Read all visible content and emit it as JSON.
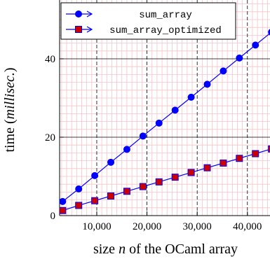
{
  "chart_data": {
    "type": "line",
    "xlabel_prefix": "size ",
    "xlabel_var": "n",
    "xlabel_suffix": " of the OCaml array",
    "ylabel_prefix": "time (",
    "ylabel_var": "millisec.",
    "ylabel_suffix": ")",
    "xlim": [
      2600,
      44500
    ],
    "ylim": [
      0,
      55
    ],
    "x_ticks": [
      {
        "value": 10000,
        "label": "10,000"
      },
      {
        "value": 20000,
        "label": "20,000"
      },
      {
        "value": 30000,
        "label": "30,000"
      },
      {
        "value": 40000,
        "label": "40,000"
      }
    ],
    "y_ticks": [
      {
        "value": 0,
        "label": "0"
      },
      {
        "value": 20,
        "label": "20"
      },
      {
        "value": 40,
        "label": "40"
      }
    ],
    "grid": true,
    "legend_position": "top-left",
    "series": [
      {
        "name": "sum_array",
        "color": "#0000ff",
        "marker": "circle",
        "x": [
          3200,
          6400,
          9600,
          12800,
          16000,
          19200,
          22400,
          25600,
          28800,
          32000,
          35200,
          38400,
          41600,
          44800
        ],
        "y": [
          3.6,
          6.8,
          10.2,
          13.6,
          16.9,
          20.3,
          23.6,
          26.9,
          30.2,
          33.5,
          36.9,
          40.2,
          43.5,
          46.8
        ]
      },
      {
        "name": "sum_array_optimized",
        "color": "#0000ff",
        "fill": "#cc0000",
        "marker": "square",
        "x": [
          3200,
          6400,
          9600,
          12800,
          16000,
          19200,
          22400,
          25600,
          28800,
          32000,
          35200,
          38400,
          41600,
          44800
        ],
        "y": [
          1.3,
          2.6,
          3.8,
          5.0,
          6.2,
          7.4,
          8.6,
          9.8,
          11.0,
          12.2,
          13.4,
          14.6,
          15.8,
          17.0
        ]
      }
    ]
  }
}
